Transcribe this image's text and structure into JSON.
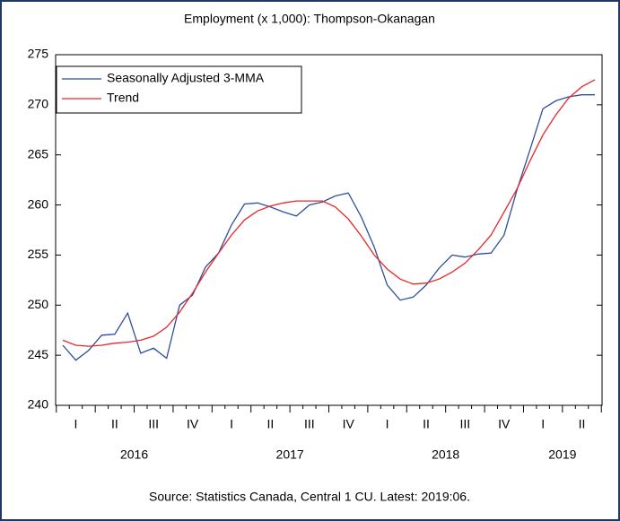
{
  "chart_data": {
    "type": "line",
    "title": "Employment (x 1,000): Thompson-Okanagan",
    "source": "Source:  Statistics Canada, Central 1 CU. Latest: 2019:06.",
    "quarters": [
      "I",
      "II",
      "III",
      "IV",
      "I",
      "II",
      "III",
      "IV",
      "I",
      "II",
      "III",
      "IV",
      "I",
      "II"
    ],
    "years": [
      "2016",
      "2017",
      "2018",
      "2019"
    ],
    "ylim": [
      240,
      275
    ],
    "yticks": [
      240,
      245,
      250,
      255,
      260,
      265,
      270,
      275
    ],
    "legend": "upper left",
    "series": [
      {
        "name": "Seasonally Adjusted 3-MMA",
        "color": "#2f4f9a",
        "values": [
          246.0,
          244.5,
          245.5,
          247.0,
          247.1,
          249.2,
          245.2,
          245.7,
          244.7,
          250.0,
          251.0,
          253.8,
          255.2,
          258.0,
          260.1,
          260.2,
          259.8,
          259.3,
          258.9,
          260.0,
          260.3,
          260.9,
          261.2,
          258.8,
          255.8,
          252.0,
          250.5,
          250.8,
          252.0,
          253.7,
          255.0,
          254.8,
          255.1,
          255.2,
          257.0,
          261.5,
          265.5,
          269.6,
          270.4,
          270.8,
          271.0,
          271.0
        ]
      },
      {
        "name": "Trend",
        "color": "#e8262a",
        "values": [
          246.5,
          246.0,
          245.9,
          246.0,
          246.2,
          246.3,
          246.5,
          246.9,
          247.8,
          249.3,
          251.2,
          253.3,
          255.2,
          257.0,
          258.5,
          259.4,
          259.9,
          260.2,
          260.4,
          260.4,
          260.4,
          259.8,
          258.6,
          256.9,
          255.0,
          253.6,
          252.6,
          252.1,
          252.2,
          252.6,
          253.3,
          254.2,
          255.5,
          257.0,
          259.3,
          261.6,
          264.4,
          267.0,
          269.0,
          270.7,
          271.8,
          272.5
        ]
      }
    ]
  }
}
